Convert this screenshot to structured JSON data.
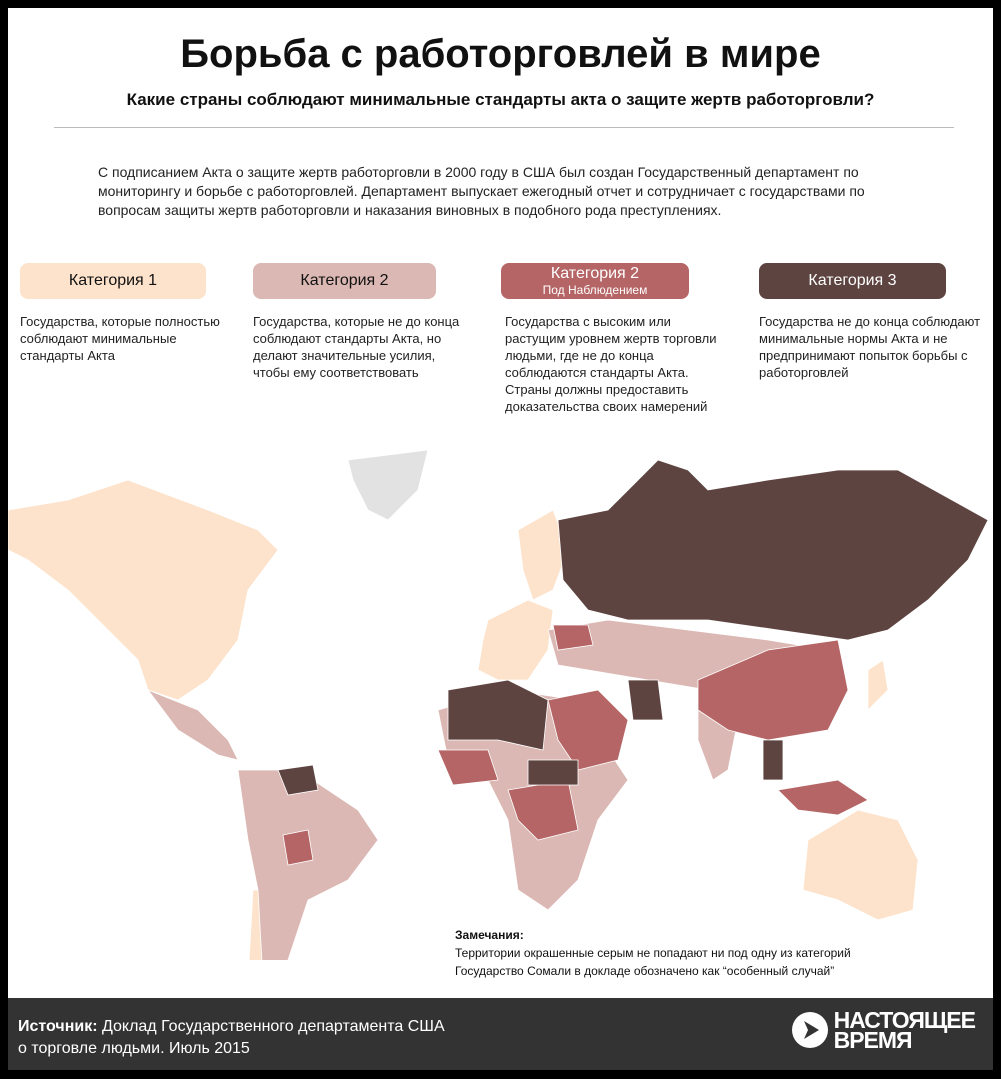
{
  "title": "Борьба с работорговлей в мире",
  "subtitle": "Какие страны соблюдают минимальные стандарты акта о защите жертв работорговли?",
  "intro": "С подписанием Акта о защите жертв работорговли в 2000 году в США был создан  Государственный департамент по мониторингу и борьбе с работорговлей. Департамент выпускает ежегодный отчет и сотрудничает с государствами по вопросам защиты жертв работорговли и наказания виновных в подобного рода преступлениях.",
  "categories": [
    {
      "label": "Категория 1",
      "sublabel": "",
      "color": "#fde3cb",
      "text_color": "#111111",
      "description": "Государства, которые полностью соблюдают минимальные стандарты Акта"
    },
    {
      "label": "Категория 2",
      "sublabel": "",
      "color": "#dbb8b3",
      "text_color": "#111111",
      "description": "Государства, которые не до конца соблюдают стандарты Акта, но делают значительные усилия, чтобы ему соответствовать"
    },
    {
      "label": "Категория 2",
      "sublabel": "Под Наблюдением",
      "color": "#b56565",
      "text_color": "#ffffff",
      "description": "Государства с высоким или растущим уровнем жертв торговли людьми, где не до конца соблюдаются стандарты Акта. Страны должны предоставить доказательства своих намерений"
    },
    {
      "label": "Категория 3",
      "sublabel": "",
      "color": "#5e4441",
      "text_color": "#ffffff",
      "description": "Государства не до конца соблюдают минимальные нормы Акта и не предпринимают попыток борьбы с работорговлей"
    }
  ],
  "no_category_color": "#e2e2e2",
  "notes": {
    "heading": "Замечания:",
    "lines": [
      "Территории окрашенные серым не попадают ни под одну из категорий",
      "Государство Сомали в докладе обозначено как “особенный случай”"
    ]
  },
  "footer": {
    "source_label": "Источник:",
    "source_text": " Доклад Государственного департамента США о торговле людьми. Июль 2015",
    "logo_line1": "настоящее",
    "logo_line2": "время"
  }
}
